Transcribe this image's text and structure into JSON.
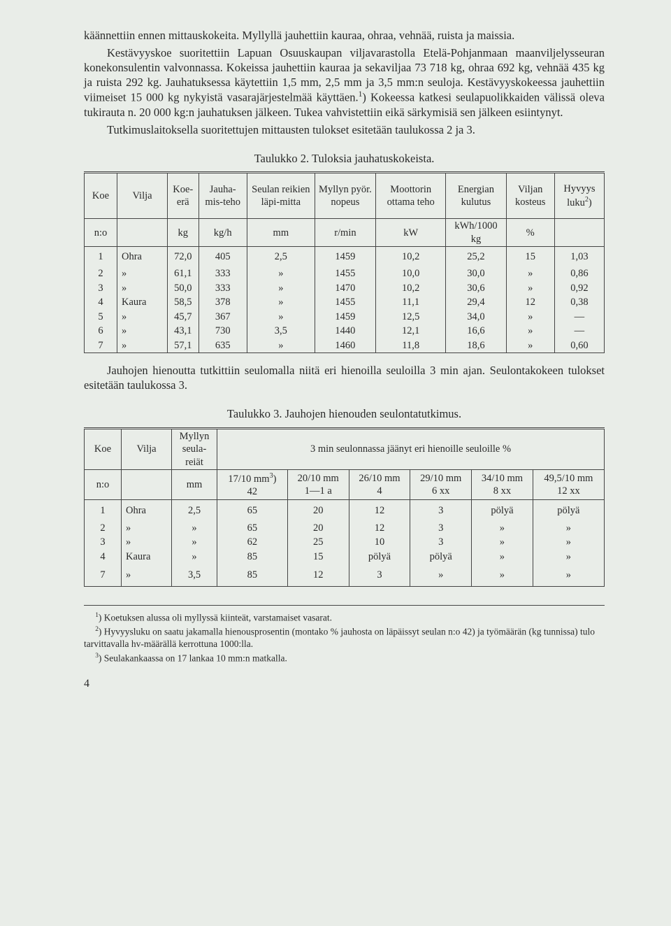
{
  "body_paragraphs": {
    "p1": "käännettiin ennen mittauskokeita. Myllyllä jauhettiin kauraa, ohraa, vehnää, ruista ja maissia.",
    "p2_a": "Kestävyyskoe suoritettiin Lapuan Osuuskaupan viljavarastolla Etelä-Pohjanmaan maanviljelysseuran konekonsulentin valvonnassa. Kokeissa jauhettiin kauraa ja sekaviljaa 73 718 kg, ohraa 692 kg, vehnää 435 kg ja ruista 292 kg. Jauhatuksessa käytettiin 1,5 mm, 2,5 mm ja 3,5 mm:n seuloja. Kestävyyskokeessa jauhettiin viimeiset 15 000 kg nykyistä vasarajärjestelmää käyttäen.",
    "p2_b": ") Kokeessa katkesi seulapuolikkaiden välissä oleva tukirauta n. 20 000 kg:n jauhatuksen jälkeen. Tukea vahvistettiin eikä särkymisiä sen jälkeen esiintynyt.",
    "p3": "Tutkimuslaitoksella suoritettujen mittausten tulokset esitetään taulukossa 2 ja 3.",
    "mid": "Jauhojen hienoutta tutkittiin seulomalla niitä eri hienoilla seuloilla 3 min ajan. Seulontakokeen tulokset esitetään taulukossa 3."
  },
  "table2": {
    "caption": "Taulukko 2. Tuloksia jauhatuskokeista.",
    "head": {
      "koe": "Koe",
      "vilja": "Vilja",
      "koeera": "Koe-erä",
      "jauhamisteho": "Jauha-mis-teho",
      "seulan": "Seulan reikien läpi-mitta",
      "myllyn": "Myllyn pyör. nopeus",
      "moottorin": "Moottorin ottama teho",
      "energian": "Energian kulutus",
      "viljan": "Viljan kosteus",
      "hyvyys_a": "Hyvyys luku",
      "no": "n:o",
      "u_kg": "kg",
      "u_kgh": "kg/h",
      "u_mm": "mm",
      "u_rmin": "r/min",
      "u_kw": "kW",
      "u_kwh": "kWh/1000 kg",
      "u_pc": "%"
    },
    "rows": [
      {
        "n": "1",
        "vilja": "Ohra",
        "koeera": "72,0",
        "jt": "405",
        "sr": "2,5",
        "mp": "1459",
        "mo": "10,2",
        "ek": "25,2",
        "vk": "15",
        "hl": "1,03"
      },
      {
        "n": "2",
        "vilja": "»",
        "koeera": "61,1",
        "jt": "333",
        "sr": "»",
        "mp": "1455",
        "mo": "10,0",
        "ek": "30,0",
        "vk": "»",
        "hl": "0,86"
      },
      {
        "n": "3",
        "vilja": "»",
        "koeera": "50,0",
        "jt": "333",
        "sr": "»",
        "mp": "1470",
        "mo": "10,2",
        "ek": "30,6",
        "vk": "»",
        "hl": "0,92"
      },
      {
        "n": "4",
        "vilja": "Kaura",
        "koeera": "58,5",
        "jt": "378",
        "sr": "»",
        "mp": "1455",
        "mo": "11,1",
        "ek": "29,4",
        "vk": "12",
        "hl": "0,38"
      },
      {
        "n": "5",
        "vilja": "»",
        "koeera": "45,7",
        "jt": "367",
        "sr": "»",
        "mp": "1459",
        "mo": "12,5",
        "ek": "34,0",
        "vk": "»",
        "hl": "—"
      },
      {
        "n": "6",
        "vilja": "»",
        "koeera": "43,1",
        "jt": "730",
        "sr": "3,5",
        "mp": "1440",
        "mo": "12,1",
        "ek": "16,6",
        "vk": "»",
        "hl": "—"
      },
      {
        "n": "7",
        "vilja": "»",
        "koeera": "57,1",
        "jt": "635",
        "sr": "»",
        "mp": "1460",
        "mo": "11,8",
        "ek": "18,6",
        "vk": "»",
        "hl": "0,60"
      }
    ]
  },
  "table3": {
    "caption": "Taulukko 3. Jauhojen hienouden seulontatutkimus.",
    "head": {
      "koe": "Koe",
      "vilja": "Vilja",
      "myllyn": "Myllyn seula-reiät",
      "span": "3 min seulonnassa jäänyt eri hienoille seuloille %",
      "no": "n:o",
      "u_mm": "mm",
      "c1a": "17/10 mm",
      "c1b": "42",
      "c2a": "20/10 mm",
      "c2b": "1—1 a",
      "c3a": "26/10 mm",
      "c3b": "4",
      "c4a": "29/10 mm",
      "c4b": "6 xx",
      "c5a": "34/10 mm",
      "c5b": "8 xx",
      "c6a": "49,5/10 mm",
      "c6b": "12 xx"
    },
    "rows": [
      {
        "n": "1",
        "vilja": "Ohra",
        "ms": "2,5",
        "c1": "65",
        "c2": "20",
        "c3": "12",
        "c4": "3",
        "c5": "pölyä",
        "c6": "pölyä"
      },
      {
        "n": "2",
        "vilja": "»",
        "ms": "»",
        "c1": "65",
        "c2": "20",
        "c3": "12",
        "c4": "3",
        "c5": "»",
        "c6": "»"
      },
      {
        "n": "3",
        "vilja": "»",
        "ms": "»",
        "c1": "62",
        "c2": "25",
        "c3": "10",
        "c4": "3",
        "c5": "»",
        "c6": "»"
      },
      {
        "n": "4",
        "vilja": "Kaura",
        "ms": "»",
        "c1": "85",
        "c2": "15",
        "c3": "pölyä",
        "c4": "pölyä",
        "c5": "»",
        "c6": "»"
      },
      {
        "n": "7",
        "vilja": "»",
        "ms": "3,5",
        "c1": "85",
        "c2": "12",
        "c3": "3",
        "c4": "»",
        "c5": "»",
        "c6": "»"
      }
    ]
  },
  "footnotes": {
    "f1": "Koetuksen alussa oli myllyssä kiinteät, varstamaiset vasarat.",
    "f2": "Hyvyysluku on saatu jakamalla hienousprosentin (montako % jauhosta on läpäissyt seulan n:o 42) ja työmäärän (kg tunnissa) tulo tarvittavalla hv-määrällä kerrottuna 1000:lla.",
    "f3": "Seulakankaassa on 17 lankaa 10 mm:n matkalla."
  },
  "page_number": "4"
}
